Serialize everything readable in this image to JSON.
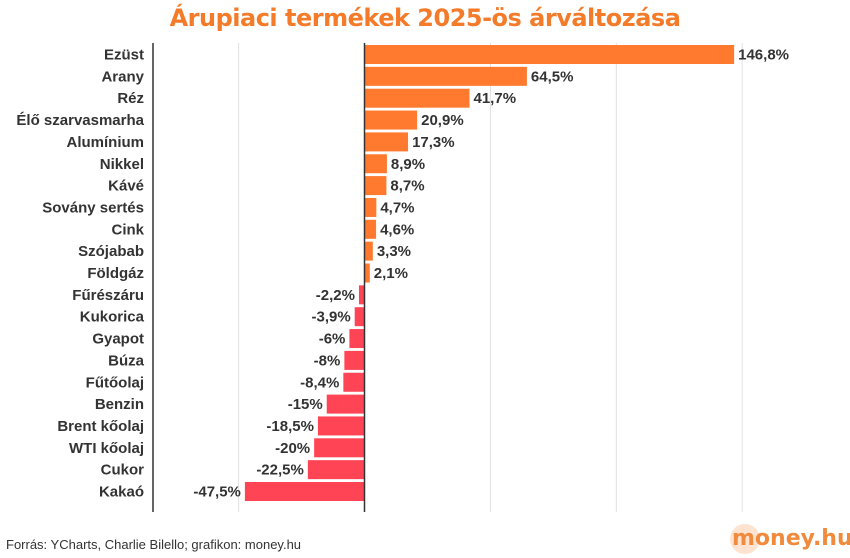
{
  "chart_data": {
    "type": "bar",
    "orientation": "horizontal",
    "title": "Árupiaci termékek 2025-ös árváltozása",
    "categories": [
      "Ezüst",
      "Arany",
      "Réz",
      "Élő szarvasmarha",
      "Alumínium",
      "Nikkel",
      "Kávé",
      "Sovány sertés",
      "Cink",
      "Szójabab",
      "Földgáz",
      "Fűrészáru",
      "Kukorica",
      "Gyapot",
      "Búza",
      "Fűtőolaj",
      "Benzin",
      "Brent kőolaj",
      "WTI kőolaj",
      "Cukor",
      "Kakaó"
    ],
    "values": [
      146.8,
      64.5,
      41.7,
      20.9,
      17.3,
      8.9,
      8.7,
      4.7,
      4.6,
      3.3,
      2.1,
      -2.2,
      -3.9,
      -6,
      -8,
      -8.4,
      -15,
      -18.5,
      -20,
      -22.5,
      -47.5
    ],
    "value_labels": [
      "146,8%",
      "64,5%",
      "41,7%",
      "20,9%",
      "17,3%",
      "8,9%",
      "8,7%",
      "4,7%",
      "4,6%",
      "3,3%",
      "2,1%",
      "-2,2%",
      "-3,9%",
      "-6%",
      "-8%",
      "-8,4%",
      "-15%",
      "-18,5%",
      "-20%",
      "-22,5%",
      "-47,5%"
    ],
    "xlim": [
      -84,
      167
    ],
    "grid": true,
    "colors": {
      "positive": "#ff7a2f",
      "negative": "#ff4455",
      "title": "#f47b2a",
      "grid": "#e0e0e0",
      "axis": "#333333"
    }
  },
  "source": "Forrás: YCharts, Charlie Bilello; grafikon: money.hu",
  "logo": {
    "text": "money.hu"
  }
}
